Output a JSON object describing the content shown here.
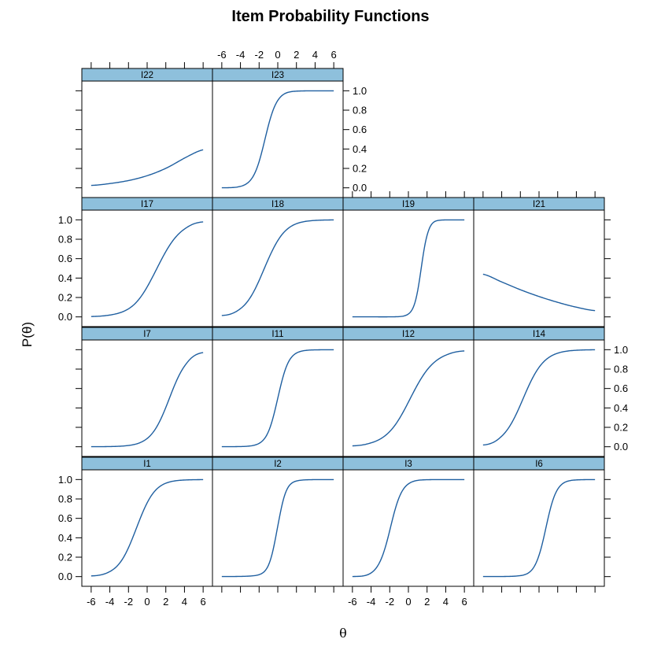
{
  "chart_data": {
    "type": "line",
    "title": "Item Probability Functions",
    "xlabel": "θ",
    "ylabel": "P(θ)",
    "xlim": [
      -7,
      7
    ],
    "ylim": [
      -0.1,
      1.1
    ],
    "x_ticks": [
      "-6",
      "-4",
      "-2",
      "0",
      "2",
      "4",
      "6"
    ],
    "y_ticks": [
      "0.0",
      "0.2",
      "0.4",
      "0.6",
      "0.8",
      "1.0"
    ],
    "line_color": "#1f5fa0",
    "strip_color": "#8ec0dc",
    "panels": [
      {
        "name": "I1",
        "x": [
          -6,
          -4,
          -2,
          0,
          2,
          4,
          6
        ],
        "y": [
          0.007,
          0.052,
          0.298,
          0.76,
          0.962,
          0.995,
          0.999
        ]
      },
      {
        "name": "I2",
        "x": [
          -6,
          -4,
          -2,
          0,
          2,
          4,
          6
        ],
        "y": [
          0.0,
          0.002,
          0.02,
          0.52,
          0.985,
          0.999,
          1.0
        ]
      },
      {
        "name": "I3",
        "x": [
          -6,
          -4,
          -2,
          0,
          2,
          4,
          6
        ],
        "y": [
          0.001,
          0.038,
          0.475,
          0.955,
          0.998,
          1.0,
          1.0
        ]
      },
      {
        "name": "I6",
        "x": [
          -6,
          -4,
          -2,
          0,
          2,
          4,
          6
        ],
        "y": [
          0.0,
          0.001,
          0.01,
          0.22,
          0.9,
          0.996,
          1.0
        ]
      },
      {
        "name": "I7",
        "x": [
          -6,
          -4,
          -2,
          0,
          2,
          4,
          6
        ],
        "y": [
          0.0,
          0.002,
          0.013,
          0.085,
          0.405,
          0.83,
          0.97
        ]
      },
      {
        "name": "I11",
        "x": [
          -6,
          -4,
          -2,
          0,
          2,
          4,
          6
        ],
        "y": [
          0.0,
          0.002,
          0.035,
          0.5,
          0.965,
          0.998,
          1.0
        ]
      },
      {
        "name": "I12",
        "x": [
          -6,
          -4,
          -2,
          0,
          2,
          4,
          6
        ],
        "y": [
          0.009,
          0.04,
          0.157,
          0.46,
          0.791,
          0.943,
          0.987
        ]
      },
      {
        "name": "I14",
        "x": [
          -6,
          -4,
          -2,
          0,
          2,
          4,
          6
        ],
        "y": [
          0.018,
          0.109,
          0.43,
          0.818,
          0.964,
          0.994,
          0.999
        ]
      },
      {
        "name": "I17",
        "x": [
          -6,
          -4,
          -2,
          0,
          2,
          4,
          6
        ],
        "y": [
          0.004,
          0.019,
          0.083,
          0.309,
          0.673,
          0.905,
          0.979
        ]
      },
      {
        "name": "I18",
        "x": [
          -6,
          -4,
          -2,
          0,
          2,
          4,
          6
        ],
        "y": [
          0.014,
          0.085,
          0.375,
          0.786,
          0.96,
          0.994,
          0.999
        ]
      },
      {
        "name": "I19",
        "x": [
          -6,
          -4,
          -2,
          0,
          2,
          4,
          6
        ],
        "y": [
          0.0,
          0.0,
          0.0,
          0.03,
          0.84,
          0.999,
          1.0
        ]
      },
      {
        "name": "I21",
        "x": [
          -6,
          -4,
          -2,
          0,
          2,
          4,
          6
        ],
        "y": [
          0.44,
          0.36,
          0.28,
          0.21,
          0.15,
          0.1,
          0.065
        ]
      },
      {
        "name": "I22",
        "x": [
          -6,
          -4,
          -2,
          0,
          2,
          4,
          6
        ],
        "y": [
          0.025,
          0.044,
          0.075,
          0.125,
          0.201,
          0.306,
          0.392
        ]
      },
      {
        "name": "I23",
        "x": [
          -6,
          -4,
          -2,
          0,
          2,
          4,
          6
        ],
        "y": [
          0.0,
          0.015,
          0.27,
          0.9,
          0.996,
          1.0,
          1.0
        ]
      }
    ]
  }
}
